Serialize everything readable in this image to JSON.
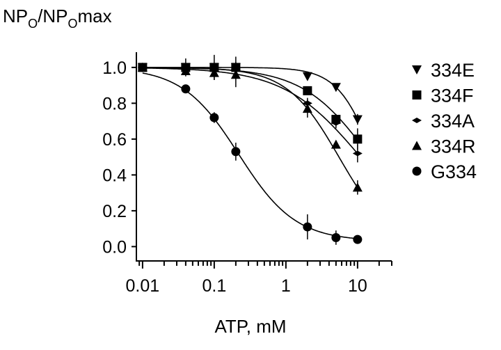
{
  "chart_data": {
    "type": "scatter",
    "title": "",
    "ylabel_parts": [
      "NP",
      "O",
      "/NP",
      "O",
      "max"
    ],
    "ylabel": "NPO/NPOmax",
    "xlabel": "ATP, mM",
    "xscale": "log",
    "xlim": [
      0.0082,
      30
    ],
    "ylim": [
      -0.08,
      1.085
    ],
    "xticks": [
      0.01,
      0.1,
      1,
      10
    ],
    "xtick_labels": [
      "0.01",
      "0.1",
      "1",
      "10"
    ],
    "yticks": [
      0.0,
      0.2,
      0.4,
      0.6,
      0.8,
      1.0
    ],
    "ytick_labels": [
      "0.0",
      "0.2",
      "0.4",
      "0.6",
      "0.8",
      "1.0"
    ],
    "grid": false,
    "legend_position": "right",
    "x": [
      0.01,
      0.04,
      0.1,
      0.2,
      2,
      5,
      10
    ],
    "series": [
      {
        "name": "334E",
        "marker": "triangle-down",
        "values": [
          1.0,
          1.0,
          1.0,
          1.0,
          0.95,
          0.89,
          0.71
        ],
        "err": [
          0,
          0.02,
          0.02,
          0.02,
          0.02,
          0.02,
          0.03
        ],
        "fit": {
          "bottom": 0,
          "ic50": 17,
          "hill": 1.7
        }
      },
      {
        "name": "334F",
        "marker": "square",
        "values": [
          1.0,
          1.0,
          1.0,
          1.0,
          0.87,
          0.71,
          0.6
        ],
        "err": [
          0,
          0.05,
          0.07,
          0.06,
          0.02,
          0.03,
          0.06
        ],
        "fit": {
          "bottom": 0,
          "ic50": 15,
          "hill": 0.93
        }
      },
      {
        "name": "334A",
        "marker": "diamond",
        "values": [
          1.0,
          0.99,
          0.99,
          0.99,
          0.8,
          0.69,
          0.52
        ],
        "err": [
          0,
          0.03,
          0.03,
          0.03,
          0.03,
          0.03,
          0.05
        ],
        "fit": {
          "bottom": 0,
          "ic50": 11,
          "hill": 0.81
        }
      },
      {
        "name": "334R",
        "marker": "triangle-up",
        "values": [
          1.0,
          0.98,
          0.97,
          0.96,
          0.77,
          0.57,
          0.33
        ],
        "err": [
          0,
          0.02,
          0.04,
          0.07,
          0.05,
          0.02,
          0.04
        ],
        "fit": {
          "bottom": 0,
          "ic50": 5.5,
          "hill": 1.19
        }
      },
      {
        "name": "G334",
        "marker": "circle",
        "values": [
          1.0,
          0.88,
          0.72,
          0.53,
          0.11,
          0.05,
          0.04
        ],
        "err": [
          0,
          0.01,
          0.03,
          0.05,
          0.07,
          0.04,
          0.01
        ],
        "fit": {
          "bottom": 0.03,
          "ic50": 0.22,
          "hill": 1.1
        }
      }
    ]
  }
}
